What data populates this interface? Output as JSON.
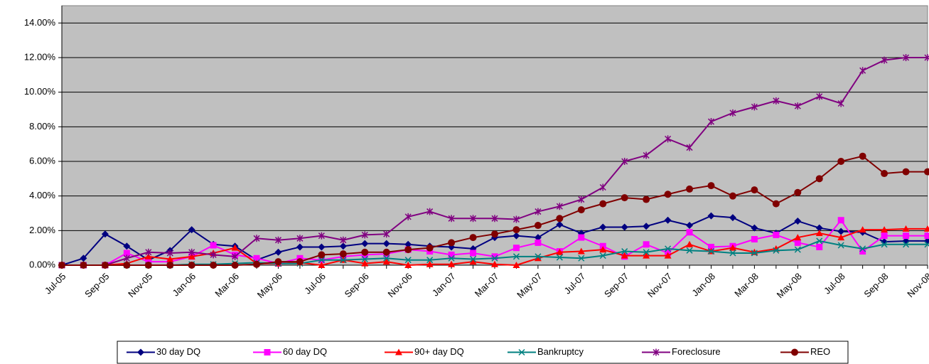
{
  "chart_data": {
    "type": "line",
    "categories": [
      "Jul-05",
      null,
      "Sep-05",
      null,
      "Nov-05",
      null,
      "Jan-06",
      null,
      "Mar-06",
      null,
      "May-06",
      null,
      "Jul-06",
      null,
      "Sep-06",
      null,
      "Nov-06",
      null,
      "Jan-07",
      null,
      "Mar-07",
      null,
      "May-07",
      null,
      "Jul-07",
      null,
      "Sep-07",
      null,
      "Nov-07",
      null,
      "Jan-08",
      null,
      "Mar-08",
      null,
      "May-08",
      null,
      "Jul-08",
      null,
      "Sep-08",
      null,
      "Nov-08"
    ],
    "ylim": [
      0,
      15
    ],
    "yticks": [
      {
        "value": 0,
        "label": "0.00%"
      },
      {
        "value": 2,
        "label": "2.00%"
      },
      {
        "value": 4,
        "label": "4.00%"
      },
      {
        "value": 6,
        "label": "6.00%"
      },
      {
        "value": 8,
        "label": "8.00%"
      },
      {
        "value": 10,
        "label": "10.00%"
      },
      {
        "value": 12,
        "label": "12.00%"
      },
      {
        "value": 14,
        "label": "14.00%"
      }
    ],
    "grid": true,
    "plot_background": "#c0c0c0",
    "legend": "bottom",
    "series": [
      {
        "name": "30 day DQ",
        "color": "#000080",
        "marker": "diamond",
        "values": [
          0,
          0.4,
          1.8,
          1.1,
          0.3,
          0.85,
          2.05,
          1.2,
          1.1,
          0.3,
          0.75,
          1.05,
          1.05,
          1.1,
          1.25,
          1.25,
          1.2,
          1.1,
          1.05,
          0.95,
          1.6,
          1.7,
          1.6,
          2.35,
          1.85,
          2.2,
          2.2,
          2.25,
          2.6,
          2.3,
          2.85,
          2.75,
          2.15,
          1.85,
          2.55,
          2.15,
          1.95,
          1.9,
          1.35,
          1.4,
          1.4
        ]
      },
      {
        "name": "60 day DQ",
        "color": "#ff00ff",
        "marker": "square",
        "values": [
          0,
          0,
          0,
          0.7,
          0.2,
          0.2,
          0.5,
          1.15,
          0.6,
          0.4,
          0.1,
          0.4,
          0.3,
          0.5,
          0.6,
          0.65,
          0.9,
          0.8,
          0.6,
          0.7,
          0.5,
          1.0,
          1.3,
          0.8,
          1.6,
          1.1,
          0.5,
          1.2,
          0.7,
          1.9,
          1.05,
          1.1,
          1.5,
          1.75,
          1.3,
          1.05,
          2.6,
          0.8,
          1.7,
          1.7,
          1.7
        ]
      },
      {
        "name": "90+ day DQ",
        "color": "#ff0000",
        "marker": "triangle",
        "values": [
          0,
          0,
          0,
          0.1,
          0.5,
          0.35,
          0.5,
          0.7,
          1.0,
          0.1,
          0.1,
          0.15,
          0,
          0.3,
          0.1,
          0.2,
          0,
          0.05,
          0.05,
          0.2,
          0.05,
          0,
          0.4,
          0.75,
          0.8,
          0.9,
          0.55,
          0.55,
          0.55,
          1.2,
          0.8,
          1.0,
          0.75,
          0.95,
          1.6,
          1.85,
          1.6,
          2.05,
          2.05,
          2.1,
          2.1
        ]
      },
      {
        "name": "Bankruptcy",
        "color": "#008080",
        "marker": "x",
        "values": [
          0,
          0,
          0,
          0,
          0,
          0,
          0.05,
          0.05,
          0.1,
          0.15,
          0.1,
          0.1,
          0.3,
          0.3,
          0.35,
          0.4,
          0.3,
          0.3,
          0.4,
          0.35,
          0.4,
          0.5,
          0.5,
          0.45,
          0.4,
          0.55,
          0.8,
          0.75,
          0.95,
          0.85,
          0.8,
          0.7,
          0.7,
          0.85,
          0.9,
          1.4,
          1.15,
          0.95,
          1.2,
          1.2,
          1.2
        ]
      },
      {
        "name": "Foreclosure",
        "color": "#800080",
        "marker": "star",
        "values": [
          0,
          0,
          0,
          0.4,
          0.75,
          0.7,
          0.75,
          0.6,
          0.5,
          1.55,
          1.45,
          1.55,
          1.7,
          1.45,
          1.75,
          1.8,
          2.8,
          3.1,
          2.7,
          2.7,
          2.7,
          2.65,
          3.1,
          3.4,
          3.8,
          4.5,
          6.0,
          6.35,
          7.3,
          6.8,
          8.3,
          8.8,
          9.15,
          9.5,
          9.2,
          9.75,
          9.35,
          11.25,
          11.85,
          12.0,
          12.0
        ]
      },
      {
        "name": "REO",
        "color": "#800000",
        "marker": "circle",
        "values": [
          0,
          0,
          0,
          0,
          0,
          0,
          0,
          0,
          0,
          0.05,
          0.2,
          0.2,
          0.6,
          0.65,
          0.75,
          0.75,
          0.9,
          1.0,
          1.3,
          1.6,
          1.8,
          2.05,
          2.3,
          2.7,
          3.2,
          3.55,
          3.9,
          3.8,
          4.1,
          4.4,
          4.6,
          4.0,
          4.35,
          3.55,
          4.2,
          5.0,
          6.0,
          6.3,
          5.3,
          5.4,
          5.4
        ]
      }
    ]
  }
}
